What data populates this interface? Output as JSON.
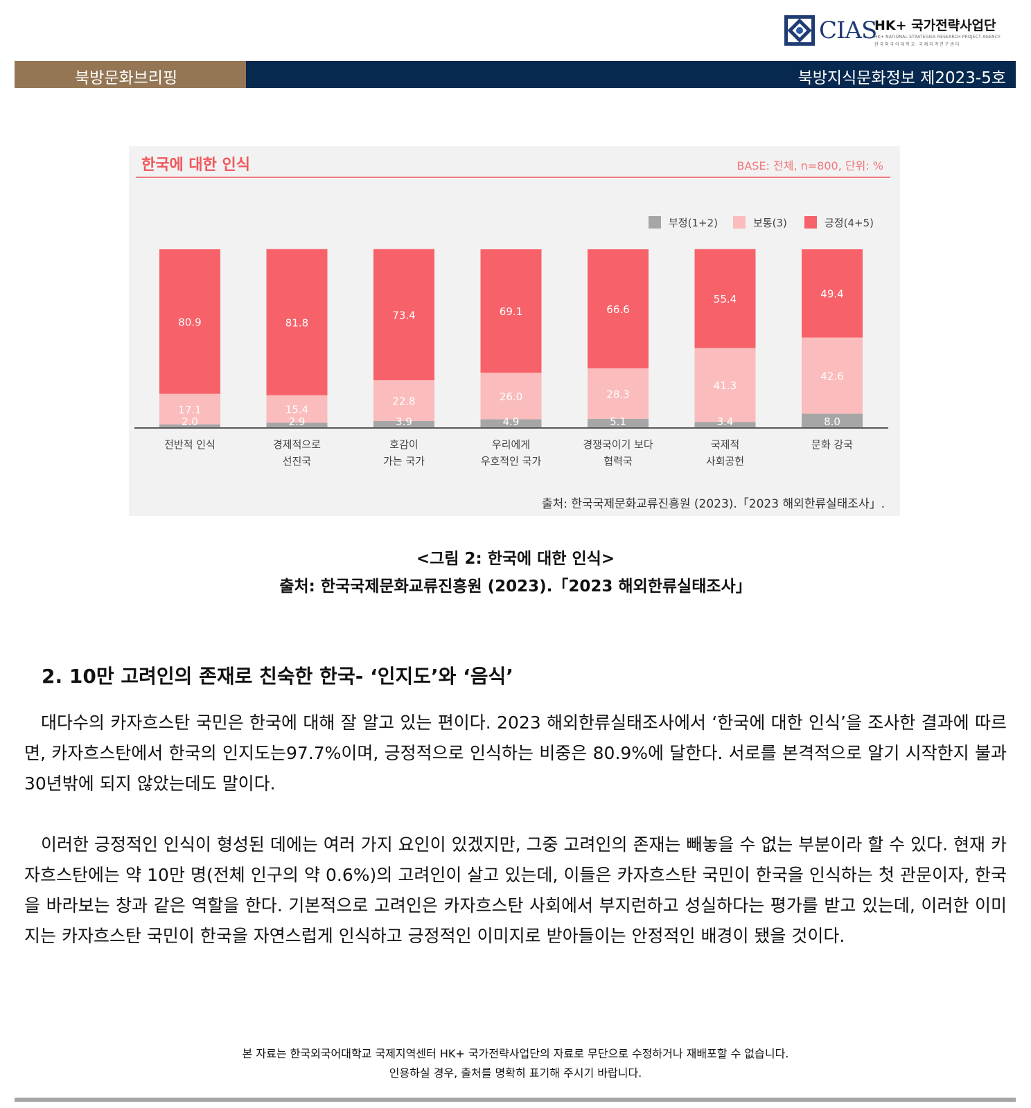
{
  "header": {
    "logo_text": "CIAS",
    "org_name": "HK+ 국가전략사업단",
    "org_sub_en": "HK+ NATIONAL STRATEGIES RESEARCH PROJECT AGENCY",
    "org_sub_ko": "한국외국어대학교 국제지역연구센터",
    "left_label": "북방문화브리핑",
    "right_label": "북방지식문화정보 제2023-5호"
  },
  "figure": {
    "caption": "<그림 2: 한국에 대한 인식>",
    "source": "출처: 한국국제문화교류진흥원 (2023).「2023 해외한류실태조사」"
  },
  "chart_data": {
    "type": "bar",
    "stacked": true,
    "title": "한국에 대한 인식",
    "base_note": "BASE: 전체, n=800, 단위: %",
    "source": "출처: 한국국제문화교류진흥원 (2023).「2023 해외한류실태조사」.",
    "categories": [
      [
        "전반적 인식"
      ],
      [
        "경제적으로",
        "선진국"
      ],
      [
        "호감이",
        "가는 국가"
      ],
      [
        "우리에게",
        "우호적인 국가"
      ],
      [
        "경쟁국이기 보다",
        "협력국"
      ],
      [
        "국제적",
        "사회공헌"
      ],
      [
        "문화 강국"
      ]
    ],
    "series": [
      {
        "name": "부정(1+2)",
        "color": "#a6a6a6",
        "values": [
          2.0,
          2.9,
          3.9,
          4.9,
          5.1,
          3.4,
          8.0
        ]
      },
      {
        "name": "보통(3)",
        "color": "#fbbcbd",
        "values": [
          17.1,
          15.4,
          22.8,
          26.0,
          28.3,
          41.3,
          42.6
        ]
      },
      {
        "name": "긍정(4+5)",
        "color": "#f7626a",
        "values": [
          80.9,
          81.8,
          73.4,
          69.1,
          66.6,
          55.4,
          49.4
        ]
      }
    ],
    "value_labels": {
      "neg": [
        "2.0",
        "2.9",
        "3.9",
        "4.9",
        "5.1",
        "3.4",
        "8.0"
      ],
      "neu": [
        "17.1",
        "15.4",
        "22.8",
        "26.0",
        "28.3",
        "41.3",
        "42.6"
      ],
      "pos": [
        "80.9",
        "81.8",
        "73.4",
        "69.1",
        "66.6",
        "55.4",
        "49.4"
      ]
    },
    "legend_position": "top-right",
    "ylim": [
      0,
      100
    ],
    "grid": false
  },
  "section": {
    "title": "2. 10만 고려인의 존재로 친숙한 한국- ‘인지도’와 ‘음식’"
  },
  "paragraphs": [
    "대다수의 카자흐스탄 국민은 한국에 대해 잘 알고 있는 편이다. 2023 해외한류실태조사에서 ‘한국에 대한 인식’을 조사한 결과에 따르면, 카자흐스탄에서 한국의 인지도는97.7%이며, 긍정적으로 인식하는 비중은 80.9%에 달한다. 서로를 본격적으로 알기 시작한지 불과 30년밖에 되지 않았는데도 말이다.",
    "이러한 긍정적인 인식이 형성된 데에는 여러 가지 요인이 있겠지만, 그중 고려인의 존재는 빼놓을 수 없는 부분이라 할 수 있다. 현재 카자흐스탄에는 약 10만 명(전체 인구의 약 0.6%)의 고려인이 살고 있는데, 이들은 카자흐스탄 국민이 한국을 인식하는 첫 관문이자, 한국을 바라보는 창과 같은 역할을 한다. 기본적으로 고려인은 카자흐스탄 사회에서 부지런하고 성실하다는 평가를 받고 있는데, 이러한 이미지는 카자흐스탄 국민이 한국을 자연스럽게 인식하고 긍정적인 이미지로 받아들이는 안정적인 배경이 됐을 것이다."
  ],
  "footer": {
    "line1": "본 자료는 한국외국어대학교 국제지역센터 HK+ 국가전략사업단의 자료로 무단으로 수정하거나 재배포할 수 없습니다.",
    "line2": "인용하실 경우, 출처를 명확히 표기해 주시기 바랍니다."
  }
}
